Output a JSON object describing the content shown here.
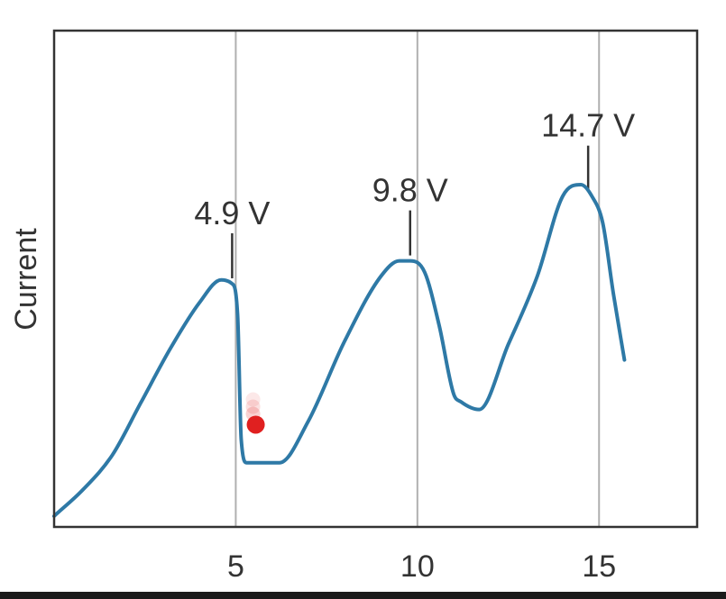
{
  "chart_data": {
    "type": "line",
    "title": "",
    "xlabel": "",
    "ylabel": "Current",
    "xlim": [
      0,
      17.7
    ],
    "ylim": [
      0,
      100
    ],
    "xticks": [
      5,
      10,
      15
    ],
    "xtick_labels": [
      "5",
      "10",
      "15"
    ],
    "grid": "vertical lines at x ticks",
    "series": [
      {
        "color": "#2e79a6",
        "x": [
          0,
          0.8,
          1.6,
          2.4,
          3.2,
          4.0,
          4.6,
          4.9,
          5.05,
          5.15,
          5.3,
          5.7,
          6.2,
          7.0,
          8.0,
          9.0,
          9.5,
          9.8,
          10.2,
          10.6,
          11.0,
          11.2,
          11.7,
          12.5,
          13.3,
          14.0,
          14.5,
          14.8,
          15.1,
          15.4,
          15.7
        ],
        "values": [
          0,
          7,
          16,
          30,
          44,
          56,
          62,
          61,
          53,
          20,
          14,
          14,
          14,
          25,
          46,
          63,
          67,
          67,
          64,
          50,
          32,
          30,
          28,
          45,
          63,
          84,
          87,
          84,
          77,
          58,
          41
        ]
      }
    ],
    "peak_annotations": [
      {
        "x": 4.9,
        "label": "4.9 V"
      },
      {
        "x": 9.8,
        "label": "9.8 V"
      },
      {
        "x": 14.7,
        "label": "14.7 V"
      }
    ],
    "highlight_point": {
      "x": 5.55,
      "y": 24,
      "color": "#e02020"
    }
  }
}
